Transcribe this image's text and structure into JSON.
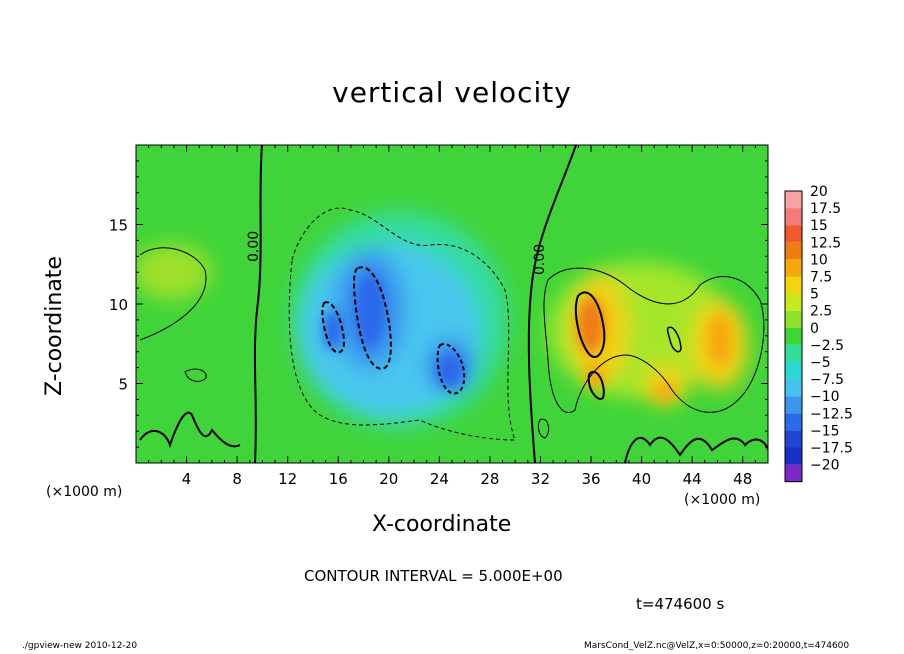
{
  "title": "vertical velocity",
  "xlabel": "X-coordinate",
  "ylabel": "Z-coordinate",
  "x_unit_left": "(×1000 m)",
  "x_unit_right": "(×1000 m)",
  "contour_interval": "CONTOUR INTERVAL = 5.000E+00",
  "time_label": "t=474600 s",
  "footer_left": "./gpview-new  2010-12-20",
  "footer_right": "MarsCond_VelZ.nc@VelZ,x=0:50000,z=0:20000,t=474600",
  "chart_data": {
    "type": "heatmap",
    "title": "vertical velocity",
    "xlabel": "X-coordinate",
    "ylabel": "Z-coordinate",
    "xlim": [
      0,
      50
    ],
    "ylim": [
      0,
      20
    ],
    "x_ticks": [
      "4",
      "8",
      "12",
      "16",
      "20",
      "24",
      "28",
      "32",
      "36",
      "40",
      "44",
      "48"
    ],
    "y_ticks": [
      "5",
      "10",
      "15"
    ],
    "contour_labels": [
      "0.00",
      "0.00"
    ],
    "colorbar": {
      "labels": [
        "20",
        "17.5",
        "15",
        "12.5",
        "10",
        "7.5",
        "5",
        "2.5",
        "0",
        "−2.5",
        "−5",
        "−7.5",
        "−10",
        "−12.5",
        "−15",
        "−17.5",
        "−20"
      ],
      "colors": [
        "#f8a3a3",
        "#f57b7b",
        "#f05a2e",
        "#f07d12",
        "#f5a70e",
        "#f4d313",
        "#c9e81f",
        "#8fe02a",
        "#3fd438",
        "#32dc9c",
        "#2ed7d4",
        "#46c1f0",
        "#3b96ee",
        "#2b6bea",
        "#2146d2",
        "#1a2fc6",
        "#7a2ac8"
      ]
    },
    "features": [
      {
        "kind": "updraft_max",
        "x": 35.5,
        "z": 8.5,
        "value": 13
      },
      {
        "kind": "updraft",
        "x": 45.8,
        "z": 9.2,
        "value": 7.5
      },
      {
        "kind": "downdraft_min",
        "x": 18.5,
        "z": 9.0,
        "value": -13
      },
      {
        "kind": "downdraft",
        "x": 25.2,
        "z": 5.5,
        "value": -12
      },
      {
        "kind": "downdraft",
        "x": 15.3,
        "z": 8.6,
        "value": -11
      }
    ],
    "grid": false,
    "legend_position": "right"
  }
}
